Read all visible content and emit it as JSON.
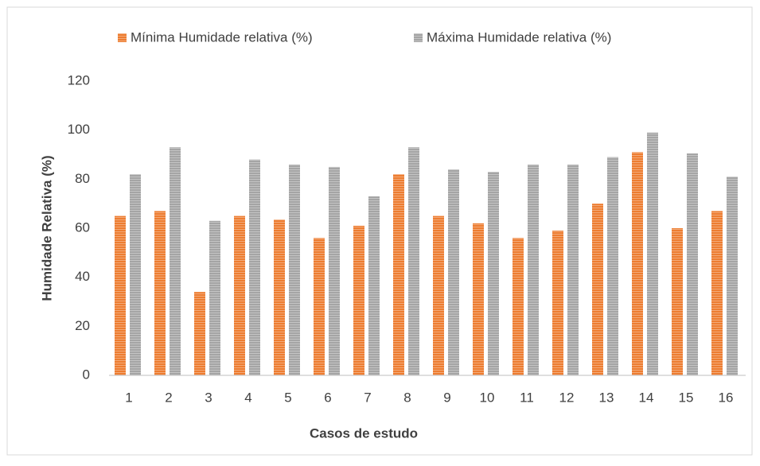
{
  "chart_data": {
    "type": "bar",
    "x_label": "Casos de estudo",
    "y_label": "Humidade Relativa (%)",
    "categories": [
      "1",
      "2",
      "3",
      "4",
      "5",
      "6",
      "7",
      "8",
      "9",
      "10",
      "11",
      "12",
      "13",
      "14",
      "15",
      "16"
    ],
    "series": [
      {
        "name": "Mínima Humidade relativa (%)",
        "color": "#ed7d31",
        "values": [
          65,
          67,
          34,
          65,
          63.5,
          56,
          61,
          82,
          65,
          62,
          56,
          59,
          70,
          91,
          60,
          67
        ]
      },
      {
        "name": "Máxima Humidade relativa (%)",
        "color": "#a5a5a5",
        "values": [
          82,
          93,
          63,
          88,
          86,
          85,
          73,
          93,
          84,
          83,
          86,
          86,
          89,
          99,
          90.5,
          81
        ]
      }
    ],
    "ylim": [
      0,
      120
    ],
    "yticks": [
      0,
      20,
      40,
      60,
      80,
      100,
      120
    ],
    "grid": false
  }
}
